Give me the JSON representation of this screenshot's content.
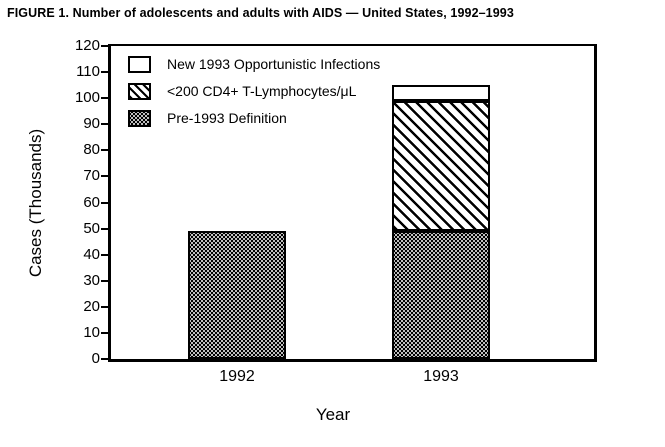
{
  "chart_data": {
    "type": "bar",
    "stacked": true,
    "title": "FIGURE 1. Number of adolescents and adults with AIDS — United States, 1992–1993",
    "categories": [
      "1992",
      "1993"
    ],
    "series": [
      {
        "name": "Pre-1993 Definition",
        "pattern": "stipple",
        "values": [
          49,
          49
        ]
      },
      {
        "name": "<200 CD4+ T-Lymphocytes/μL",
        "pattern": "hatch",
        "values": [
          0,
          50
        ]
      },
      {
        "name": "New 1993 Opportunistic Infections",
        "pattern": "plain",
        "values": [
          0,
          6
        ]
      }
    ],
    "stack_totals": [
      49,
      105
    ],
    "xlabel": "Year",
    "ylabel": "Cases (Thousands)",
    "ylim": [
      0,
      120
    ],
    "y_ticks": [
      0,
      10,
      20,
      30,
      40,
      50,
      60,
      70,
      80,
      90,
      100,
      110,
      120
    ],
    "grid": false,
    "legend": {
      "position": "upper-left-inside",
      "entries": [
        {
          "label": "New 1993 Opportunistic Infections",
          "pattern": "plain"
        },
        {
          "label": "<200 CD4+ T-Lymphocytes/μL",
          "pattern": "hatch"
        },
        {
          "label": "Pre-1993 Definition",
          "pattern": "stipple"
        }
      ]
    },
    "colors": {
      "foreground": "#000000",
      "background": "#ffffff"
    }
  }
}
